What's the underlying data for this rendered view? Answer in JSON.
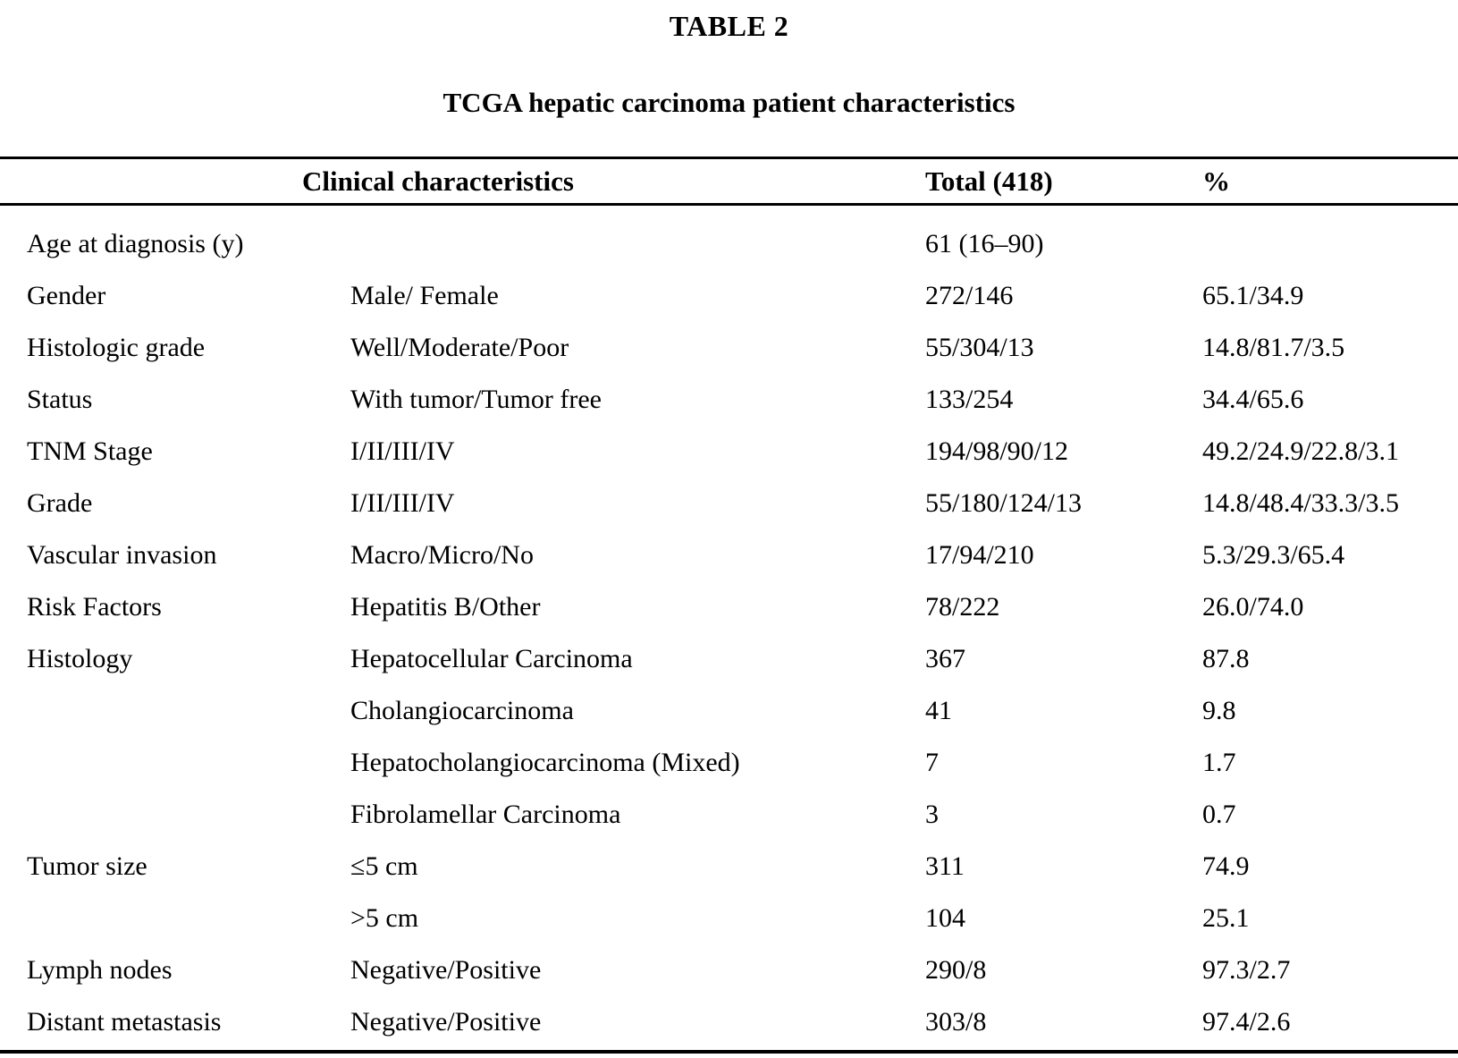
{
  "table_label": "TABLE 2",
  "table_title": "TCGA hepatic carcinoma patient characteristics",
  "columns": {
    "characteristics": "Clinical characteristics",
    "total": "Total (418)",
    "percent": "%"
  },
  "rows": [
    {
      "label": "Age at diagnosis (y)",
      "sub": "",
      "total": "61 (16–90)",
      "percent": ""
    },
    {
      "label": "Gender",
      "sub": "Male/ Female",
      "total": "272/146",
      "percent": "65.1/34.9"
    },
    {
      "label": "Histologic grade",
      "sub": "Well/Moderate/Poor",
      "total": "55/304/13",
      "percent": "14.8/81.7/3.5"
    },
    {
      "label": "Status",
      "sub": "With tumor/Tumor free",
      "total": "133/254",
      "percent": "34.4/65.6"
    },
    {
      "label": "TNM Stage",
      "sub": "I/II/III/IV",
      "total": "194/98/90/12",
      "percent": "49.2/24.9/22.8/3.1"
    },
    {
      "label": "Grade",
      "sub": "I/II/III/IV",
      "total": "55/180/124/13",
      "percent": "14.8/48.4/33.3/3.5"
    },
    {
      "label": "Vascular invasion",
      "sub": "Macro/Micro/No",
      "total": "17/94/210",
      "percent": "5.3/29.3/65.4"
    },
    {
      "label": "Risk Factors",
      "sub": "Hepatitis B/Other",
      "total": "78/222",
      "percent": "26.0/74.0"
    },
    {
      "label": "Histology",
      "sub": "Hepatocellular Carcinoma",
      "total": "367",
      "percent": "87.8"
    },
    {
      "label": "",
      "sub": "Cholangiocarcinoma",
      "total": "41",
      "percent": "9.8"
    },
    {
      "label": "",
      "sub": "Hepatocholangiocarcinoma (Mixed)",
      "total": "7",
      "percent": "1.7"
    },
    {
      "label": "",
      "sub": "Fibrolamellar Carcinoma",
      "total": "3",
      "percent": "0.7"
    },
    {
      "label": "Tumor size",
      "sub": "≤5 cm",
      "total": "311",
      "percent": "74.9"
    },
    {
      "label": "",
      "sub": ">5 cm",
      "total": "104",
      "percent": "25.1"
    },
    {
      "label": "Lymph nodes",
      "sub": "Negative/Positive",
      "total": "290/8",
      "percent": "97.3/2.7"
    },
    {
      "label": "Distant metastasis",
      "sub": "Negative/Positive",
      "total": "303/8",
      "percent": "97.4/2.6"
    }
  ]
}
